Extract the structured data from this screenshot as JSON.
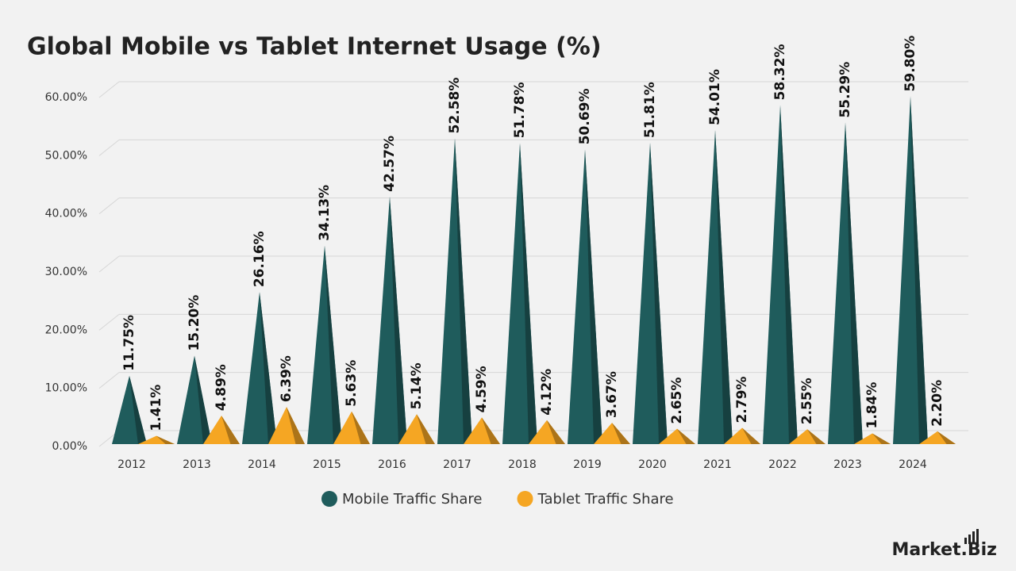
{
  "chart_data": {
    "type": "pyramid-bar",
    "title": "Global Mobile vs Tablet Internet Usage (%)",
    "categories": [
      "2012",
      "2013",
      "2014",
      "2015",
      "2016",
      "2017",
      "2018",
      "2019",
      "2020",
      "2021",
      "2022",
      "2023",
      "2024"
    ],
    "series": [
      {
        "name": "Mobile Traffic Share",
        "color": "#1f5c5c",
        "values": [
          11.75,
          15.2,
          26.16,
          34.13,
          42.57,
          52.58,
          51.78,
          50.69,
          51.81,
          54.01,
          58.32,
          55.29,
          59.8
        ],
        "value_labels": [
          "11.75%",
          "15.20%",
          "26.16%",
          "34.13%",
          "42.57%",
          "52.58%",
          "51.78%",
          "50.69%",
          "51.81%",
          "54.01%",
          "58.32%",
          "55.29%",
          "59.80%"
        ]
      },
      {
        "name": "Tablet Traffic Share",
        "color": "#f5a623",
        "values": [
          1.41,
          4.89,
          6.39,
          5.63,
          5.14,
          4.59,
          4.12,
          3.67,
          2.65,
          2.79,
          2.55,
          1.84,
          2.2
        ],
        "value_labels": [
          "1.41%",
          "4.89%",
          "6.39%",
          "5.63%",
          "5.14%",
          "4.59%",
          "4.12%",
          "3.67%",
          "2.65%",
          "2.79%",
          "2.55%",
          "1.84%",
          "2.20%"
        ]
      }
    ],
    "ylim": [
      0,
      60
    ],
    "yticks": [
      {
        "value": 0,
        "label": "0.00%"
      },
      {
        "value": 10,
        "label": "10.00%"
      },
      {
        "value": 20,
        "label": "20.00%"
      },
      {
        "value": 30,
        "label": "30.00%"
      },
      {
        "value": 40,
        "label": "40.00%"
      },
      {
        "value": 50,
        "label": "50.00%"
      },
      {
        "value": 60,
        "label": "60.00%"
      }
    ],
    "grid": true,
    "legend": "bottom",
    "brand": "Market.Biz"
  }
}
